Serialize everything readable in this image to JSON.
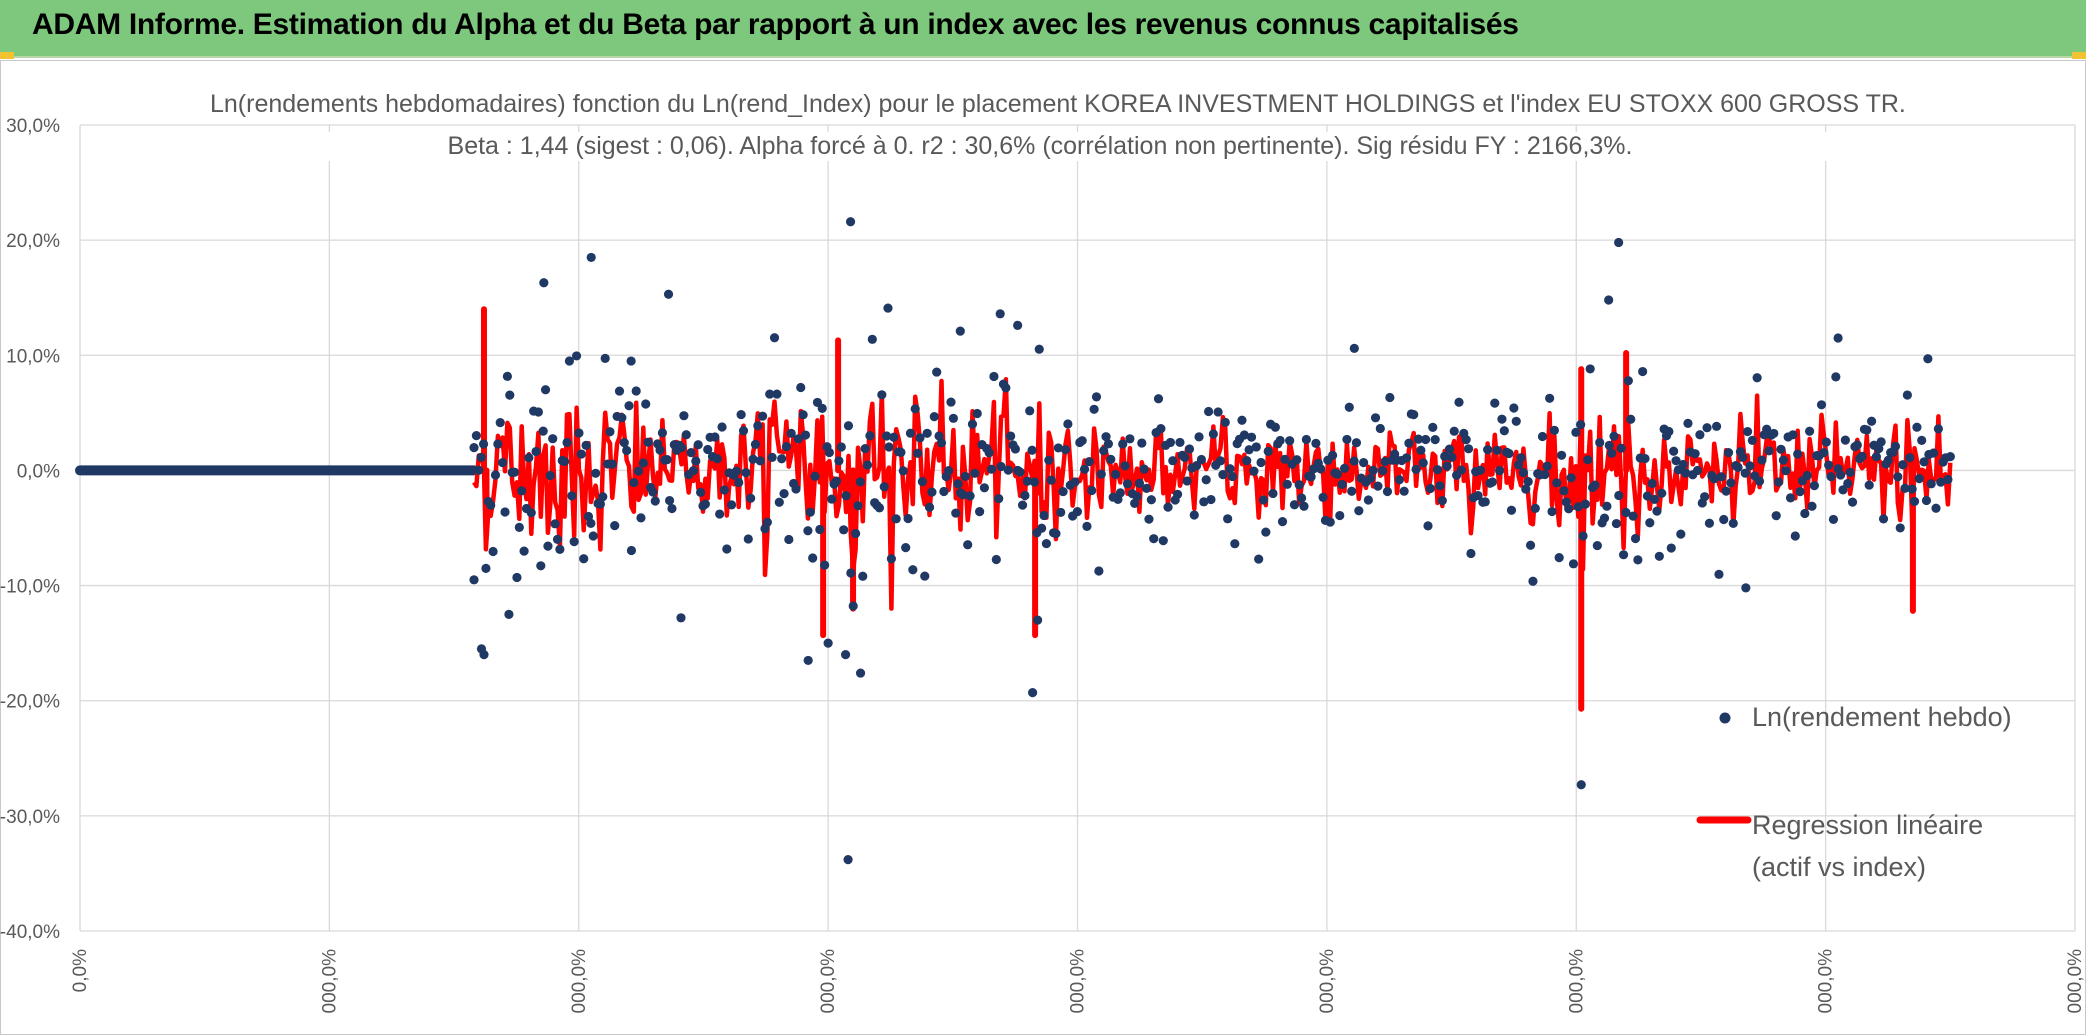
{
  "banner": {
    "title": "ADAM Informe. Estimation du Alpha et du Beta par rapport à un index avec les revenus connus capitalisés"
  },
  "chart_data": {
    "type": "scatter",
    "title": "Ln(rendements hebdomadaires) fonction du Ln(rend_Index) pour le placement KOREA INVESTMENT HOLDINGS et l'index EU STOXX 600 GROSS TR.",
    "subtitle": "Beta : 1,44 (sigest : 0,06). Alpha forcé à 0. r2 : 30,6% (corrélation non pertinente). Sig résidu FY : 2166,3%.",
    "xlabel": "",
    "ylabel": "",
    "ylim": [
      -40,
      30
    ],
    "xlim": [
      0,
      8
    ],
    "y_tick_labels": [
      "30,0%",
      "20,0%",
      "10,0%",
      "0,0%",
      "-10,0%",
      "-20,0%",
      "-30,0%",
      "-40,0%"
    ],
    "y_tick_values": [
      30,
      20,
      10,
      0,
      -10,
      -20,
      -30,
      -40
    ],
    "x_tick_labels": [
      "0,0%",
      "000,0%",
      "000,0%",
      "000,0%",
      "000,0%",
      "000,0%",
      "000,0%",
      "000,0%",
      "000,0%"
    ],
    "x_tick_values": [
      0,
      1,
      2,
      3,
      4,
      5,
      6,
      7,
      8
    ],
    "grid": true,
    "legend_position": "right",
    "series": [
      {
        "name": "Ln(rendement hebdo)",
        "kind": "scatter",
        "color": "#203864",
        "zero_segment": {
          "x_start": 0.0,
          "x_end": 1.58,
          "value": 0
        },
        "active_range": {
          "x_start": 1.58,
          "x_end": 7.5
        },
        "outliers": [
          {
            "x": 1.58,
            "y": -9.5
          },
          {
            "x": 1.61,
            "y": -15.5
          },
          {
            "x": 1.62,
            "y": -16.0
          },
          {
            "x": 1.72,
            "y": -12.5
          },
          {
            "x": 1.86,
            "y": 16.3
          },
          {
            "x": 2.05,
            "y": 18.5
          },
          {
            "x": 2.21,
            "y": 9.5
          },
          {
            "x": 2.36,
            "y": 15.3
          },
          {
            "x": 2.41,
            "y": -12.8
          },
          {
            "x": 2.92,
            "y": -16.5
          },
          {
            "x": 3.0,
            "y": -15.0
          },
          {
            "x": 3.07,
            "y": -16.0
          },
          {
            "x": 3.09,
            "y": 21.6
          },
          {
            "x": 3.08,
            "y": -33.8
          },
          {
            "x": 3.13,
            "y": -17.6
          },
          {
            "x": 3.24,
            "y": 14.1
          },
          {
            "x": 3.53,
            "y": 12.1
          },
          {
            "x": 3.69,
            "y": 13.6
          },
          {
            "x": 3.76,
            "y": 12.6
          },
          {
            "x": 3.82,
            "y": -19.3
          },
          {
            "x": 3.84,
            "y": -13.0
          },
          {
            "x": 5.11,
            "y": 10.6
          },
          {
            "x": 6.02,
            "y": -27.3
          },
          {
            "x": 6.17,
            "y": 19.8
          },
          {
            "x": 6.13,
            "y": 14.8
          },
          {
            "x": 6.68,
            "y": -10.2
          },
          {
            "x": 7.05,
            "y": 11.5
          },
          {
            "x": 7.41,
            "y": 9.7
          }
        ]
      },
      {
        "name": "Regression linéaire (actif vs index)",
        "kind": "line",
        "color": "#ff0000",
        "active_range": {
          "x_start": 1.58,
          "x_end": 7.5
        },
        "spikes": [
          {
            "x": 1.62,
            "y": 14.0
          },
          {
            "x": 1.63,
            "y": -5.0
          },
          {
            "x": 2.98,
            "y": -14.3
          },
          {
            "x": 3.04,
            "y": 11.3
          },
          {
            "x": 3.1,
            "y": -12.0
          },
          {
            "x": 3.83,
            "y": -14.3
          },
          {
            "x": 6.02,
            "y": -20.7
          },
          {
            "x": 6.02,
            "y": 8.8
          },
          {
            "x": 6.2,
            "y": 10.2
          },
          {
            "x": 7.35,
            "y": -12.2
          }
        ]
      }
    ]
  },
  "legend": {
    "scatter_label": "Ln(rendement hebdo)",
    "line_label_1": "Regression linéaire",
    "line_label_2": "(actif vs index)"
  }
}
